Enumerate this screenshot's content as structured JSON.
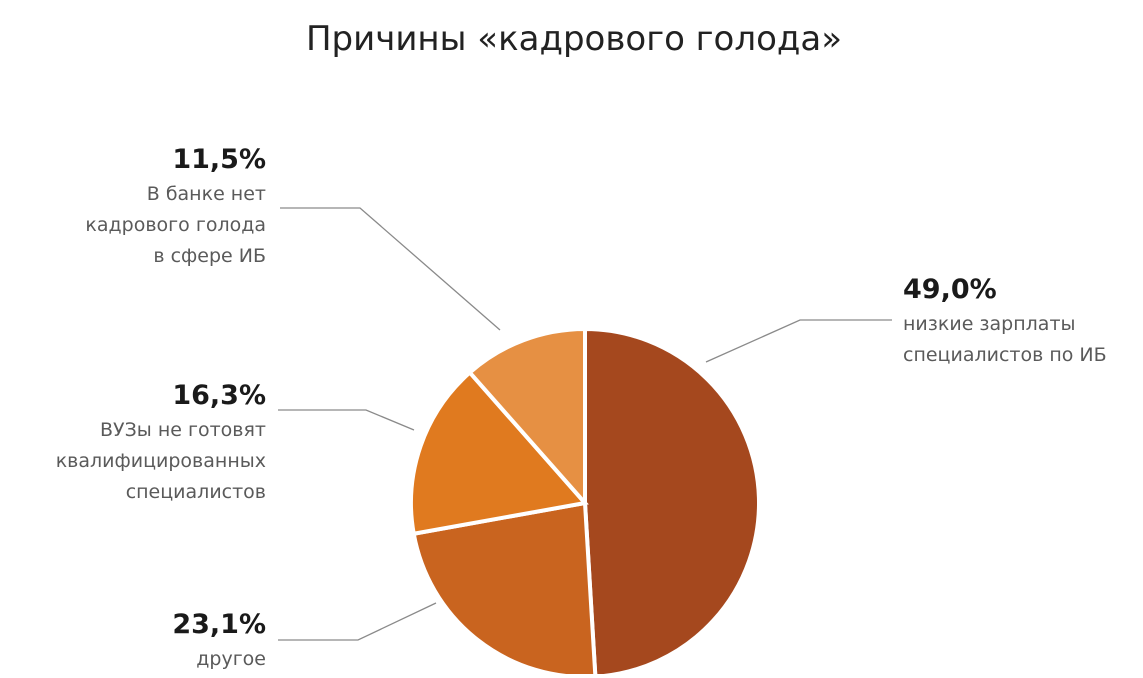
{
  "chart_data": {
    "type": "pie",
    "title": "Причины «кадрового голода»",
    "slices": [
      {
        "value": 49.0,
        "percent_label": "49,0%",
        "label_lines": [
          "низкие зарплаты",
          "специалистов по ИБ"
        ],
        "color": "#a5481e"
      },
      {
        "value": 23.1,
        "percent_label": "23,1%",
        "label_lines": [
          "другое"
        ],
        "color": "#c9641f"
      },
      {
        "value": 16.3,
        "percent_label": "16,3%",
        "label_lines": [
          "ВУЗы не готовят",
          "квалифицированных",
          "специалистов"
        ],
        "color": "#e07a1f"
      },
      {
        "value": 11.5,
        "percent_label": "11,5%",
        "label_lines": [
          "В банке нет",
          "кадрового голода",
          "в сфере ИБ"
        ],
        "color": "#e69043"
      }
    ]
  }
}
